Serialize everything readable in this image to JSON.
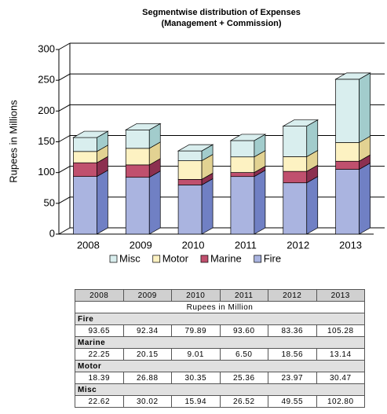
{
  "chart_data": {
    "type": "bar",
    "stacked": true,
    "title": "Segmentwise distribution of Expenses",
    "subtitle": "(Management + Commission)",
    "y_label": "Rupees in Millions",
    "categories": [
      "2008",
      "2009",
      "2010",
      "2011",
      "2012",
      "2013"
    ],
    "series": [
      {
        "name": "Fire",
        "color": "#aab4e0",
        "side_color": "#7080c4",
        "values": [
          93.65,
          92.34,
          79.89,
          93.6,
          83.36,
          105.28
        ],
        "value_labels": [
          "93.65",
          "92.34",
          "79.89",
          "93.60",
          "83.36",
          "105.28"
        ]
      },
      {
        "name": "Marine",
        "color": "#c0506e",
        "side_color": "#8c3050",
        "values": [
          22.25,
          20.15,
          9.01,
          6.5,
          18.56,
          13.14
        ],
        "value_labels": [
          "22.25",
          "20.15",
          "9.01",
          "6.50",
          "18.56",
          "13.14"
        ]
      },
      {
        "name": "Motor",
        "color": "#fdf2c2",
        "side_color": "#e2d292",
        "values": [
          18.39,
          26.88,
          30.35,
          25.36,
          23.97,
          30.47
        ],
        "value_labels": [
          "18.39",
          "26.88",
          "30.35",
          "25.36",
          "23.97",
          "30.47"
        ]
      },
      {
        "name": "Misc",
        "color": "#d9eeee",
        "side_color": "#a2cccc",
        "values": [
          22.62,
          30.02,
          15.94,
          26.52,
          49.55,
          102.8
        ],
        "value_labels": [
          "22.62",
          "30.02",
          "15.94",
          "26.52",
          "49.55",
          "102.80"
        ]
      }
    ],
    "ylim": [
      0,
      300
    ],
    "yticks": [
      0,
      50,
      100,
      150,
      200,
      250,
      300
    ],
    "grid": true,
    "legend": "bottom",
    "table_unit": "Rupees in Million"
  }
}
